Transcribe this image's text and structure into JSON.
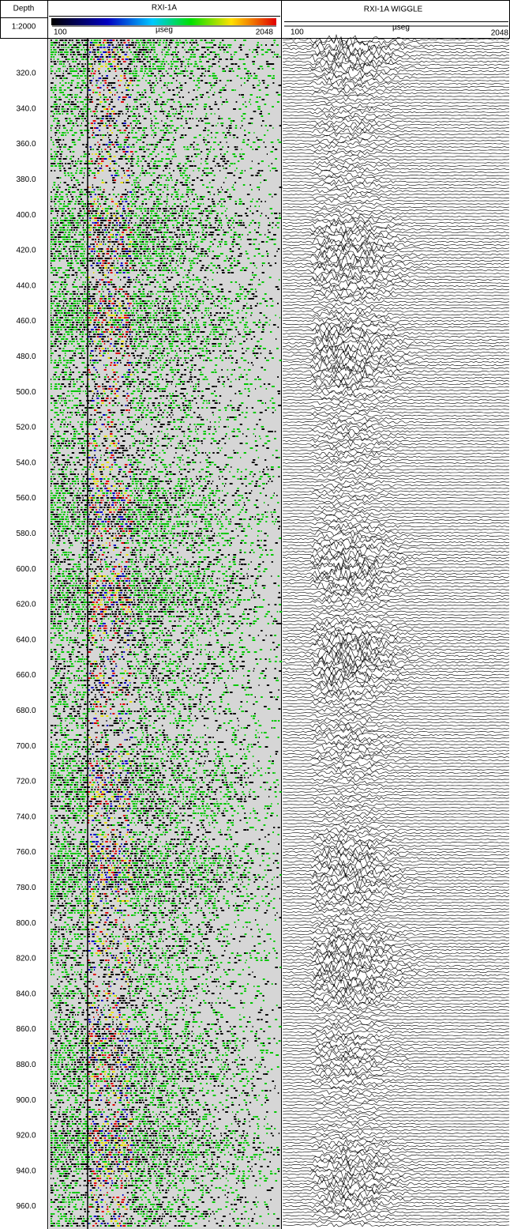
{
  "header": {
    "depth_title": "Depth",
    "scale": "1:2000",
    "track1": {
      "title": "RXI-1A",
      "min": "100",
      "unit": "µseg",
      "max": "2048"
    },
    "track2": {
      "title": "RXI-1A WIGGLE",
      "min": "100",
      "unit": "µseg",
      "max": "2048"
    }
  },
  "depth_labels": [
    "320.0",
    "340.0",
    "360.0",
    "380.0",
    "400.0",
    "420.0",
    "440.0",
    "460.0",
    "480.0",
    "500.0",
    "520.0",
    "540.0",
    "560.0",
    "580.0",
    "600.0",
    "620.0",
    "640.0",
    "660.0",
    "680.0",
    "700.0",
    "720.0",
    "740.0",
    "760.0",
    "780.0",
    "800.0",
    "820.0",
    "840.0",
    "860.0",
    "880.0",
    "900.0",
    "920.0",
    "940.0",
    "960.0"
  ]
}
